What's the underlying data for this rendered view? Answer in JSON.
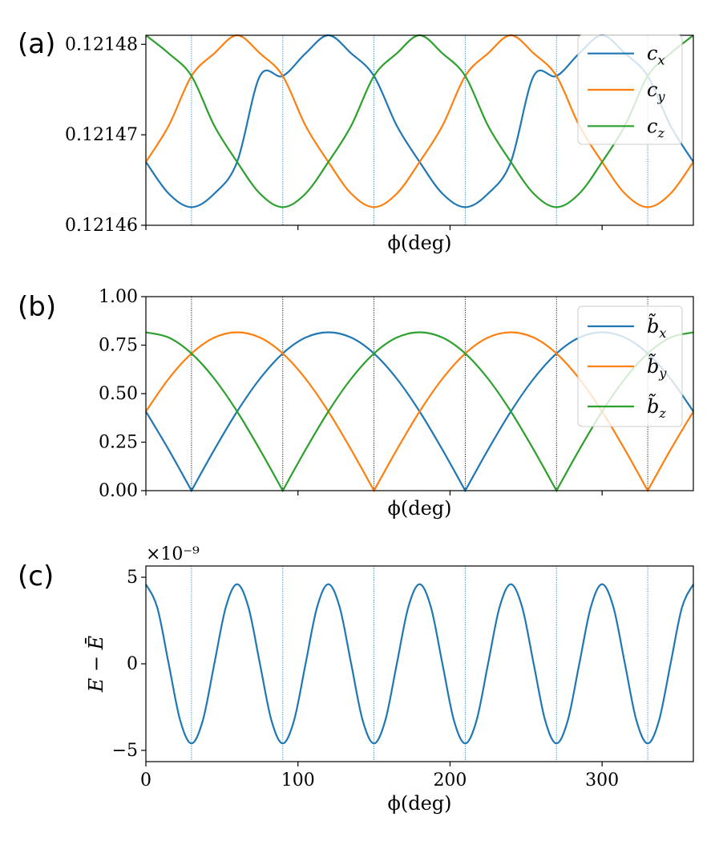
{
  "colors": {
    "blue": "#1f77b4",
    "orange": "#ff7f0e",
    "green": "#2ca02c",
    "black": "#000000"
  },
  "chart_data": [
    {
      "type": "line",
      "panel": "(a)",
      "xlabel": "ϕ(deg)",
      "ylabel": "",
      "xlim": [
        0,
        360
      ],
      "ylim": [
        0.12146,
        0.121481
      ],
      "yticks": [
        0.12146,
        0.12147,
        0.12148
      ],
      "ytick_labels": [
        "0.12146",
        "0.12147",
        "0.12148"
      ],
      "xtick_values": [
        0,
        100,
        200,
        300
      ],
      "show_xtick_labels": false,
      "vlines": [
        30,
        90,
        150,
        210,
        270,
        330
      ],
      "vline_color": "#1f77b4",
      "legend": {
        "placement": "top-right",
        "entries": [
          {
            "name": "c",
            "sub": "x"
          },
          {
            "name": "c",
            "sub": "y"
          },
          {
            "name": "c",
            "sub": "z"
          }
        ]
      },
      "series": [
        {
          "name": "cx",
          "color": "#1f77b4",
          "x": [
            0,
            15,
            30,
            45,
            60,
            75,
            90,
            105,
            120,
            135,
            150,
            165,
            180,
            195,
            210,
            225,
            240,
            255,
            270,
            285,
            300,
            315,
            330,
            345,
            360
          ],
          "y": [
            0.121467,
            0.1214635,
            0.121462,
            0.1214635,
            0.121467,
            0.1214765,
            0.1214765,
            0.121479,
            0.121481,
            0.121479,
            0.1214765,
            0.121471,
            0.121467,
            0.1214635,
            0.121462,
            0.1214635,
            0.121467,
            0.1214765,
            0.1214765,
            0.121479,
            0.121481,
            0.121479,
            0.1214765,
            0.121471,
            0.121467
          ]
        },
        {
          "name": "cy",
          "color": "#ff7f0e",
          "x": [
            0,
            15,
            30,
            45,
            60,
            75,
            90,
            105,
            120,
            135,
            150,
            165,
            180,
            195,
            210,
            225,
            240,
            255,
            270,
            285,
            300,
            315,
            330,
            345,
            360
          ],
          "y": [
            0.121467,
            0.121471,
            0.1214765,
            0.121479,
            0.121481,
            0.121479,
            0.1214765,
            0.121471,
            0.121467,
            0.1214635,
            0.121462,
            0.1214635,
            0.121467,
            0.121471,
            0.1214765,
            0.121479,
            0.121481,
            0.121479,
            0.1214765,
            0.121471,
            0.121467,
            0.1214635,
            0.121462,
            0.1214635,
            0.121467
          ]
        },
        {
          "name": "cz",
          "color": "#2ca02c",
          "x": [
            0,
            15,
            30,
            45,
            60,
            75,
            90,
            105,
            120,
            135,
            150,
            165,
            180,
            195,
            210,
            225,
            240,
            255,
            270,
            285,
            300,
            315,
            330,
            345,
            360
          ],
          "y": [
            0.121481,
            0.121479,
            0.1214765,
            0.121471,
            0.121467,
            0.1214635,
            0.121462,
            0.1214635,
            0.121467,
            0.121471,
            0.1214765,
            0.121479,
            0.121481,
            0.121479,
            0.1214765,
            0.121471,
            0.121467,
            0.1214635,
            0.121462,
            0.1214635,
            0.121467,
            0.121471,
            0.1214765,
            0.121479,
            0.121481
          ]
        }
      ]
    },
    {
      "type": "line",
      "panel": "(b)",
      "xlabel": "ϕ(deg)",
      "ylabel": "",
      "xlim": [
        0,
        360
      ],
      "ylim": [
        0,
        1
      ],
      "yticks": [
        0,
        0.25,
        0.5,
        0.75,
        1
      ],
      "ytick_labels": [
        "0.00",
        "0.25",
        "0.50",
        "0.75",
        "1.00"
      ],
      "xtick_values": [
        0,
        100,
        200,
        300
      ],
      "show_xtick_labels": false,
      "vlines": [
        30,
        90,
        150,
        210,
        270,
        330
      ],
      "vline_color": "#000000",
      "legend": {
        "placement": "top-right",
        "entries": [
          {
            "name": "b̃",
            "sub": "x"
          },
          {
            "name": "b̃",
            "sub": "y"
          },
          {
            "name": "b̃",
            "sub": "z"
          }
        ]
      },
      "series": [
        {
          "name": "bx",
          "color": "#1f77b4",
          "x": [
            0,
            15,
            30,
            45,
            60,
            75,
            90,
            105,
            120,
            135,
            150,
            165,
            180,
            195,
            210,
            225,
            240,
            255,
            270,
            285,
            300,
            315,
            330,
            345,
            360
          ],
          "y": [
            0.408,
            0.211,
            0,
            0.211,
            0.408,
            0.577,
            0.707,
            0.789,
            0.816,
            0.789,
            0.707,
            0.577,
            0.408,
            0.211,
            0,
            0.211,
            0.408,
            0.577,
            0.707,
            0.789,
            0.816,
            0.789,
            0.707,
            0.577,
            0.408
          ]
        },
        {
          "name": "by",
          "color": "#ff7f0e",
          "x": [
            0,
            15,
            30,
            45,
            60,
            75,
            90,
            105,
            120,
            135,
            150,
            165,
            180,
            195,
            210,
            225,
            240,
            255,
            270,
            285,
            300,
            315,
            330,
            345,
            360
          ],
          "y": [
            0.408,
            0.577,
            0.707,
            0.789,
            0.816,
            0.789,
            0.707,
            0.577,
            0.408,
            0.211,
            0,
            0.211,
            0.408,
            0.577,
            0.707,
            0.789,
            0.816,
            0.789,
            0.707,
            0.577,
            0.408,
            0.211,
            0,
            0.211,
            0.408
          ]
        },
        {
          "name": "bz",
          "color": "#2ca02c",
          "x": [
            0,
            15,
            30,
            45,
            60,
            75,
            90,
            105,
            120,
            135,
            150,
            165,
            180,
            195,
            210,
            225,
            240,
            255,
            270,
            285,
            300,
            315,
            330,
            345,
            360
          ],
          "y": [
            0.816,
            0.789,
            0.707,
            0.577,
            0.408,
            0.211,
            0,
            0.211,
            0.408,
            0.577,
            0.707,
            0.789,
            0.816,
            0.789,
            0.707,
            0.577,
            0.408,
            0.211,
            0,
            0.211,
            0.408,
            0.577,
            0.707,
            0.789,
            0.816
          ]
        }
      ]
    },
    {
      "type": "line",
      "panel": "(c)",
      "xlabel": "ϕ(deg)",
      "ylabel": "E − Ē",
      "offset_text": "×10⁻⁹",
      "xlim": [
        0,
        360
      ],
      "ylim": [
        -5.65,
        5.65
      ],
      "yticks": [
        -5,
        0,
        5
      ],
      "ytick_labels": [
        "−5",
        "0",
        "5"
      ],
      "xtick_values": [
        0,
        100,
        200,
        300
      ],
      "xtick_labels": [
        "0",
        "100",
        "200",
        "300"
      ],
      "show_xtick_labels": true,
      "vlines": [
        30,
        90,
        150,
        210,
        270,
        330
      ],
      "vline_color": "#1f77b4",
      "series": [
        {
          "name": "E",
          "color": "#1f77b4",
          "x": [
            0,
            7.5,
            15,
            22.5,
            30,
            37.5,
            45,
            52.5,
            60,
            67.5,
            75,
            82.5,
            90,
            97.5,
            105,
            112.5,
            120,
            127.5,
            135,
            142.5,
            150,
            157.5,
            165,
            172.5,
            180,
            187.5,
            195,
            202.5,
            210,
            217.5,
            225,
            232.5,
            240,
            247.5,
            255,
            262.5,
            270,
            277.5,
            285,
            292.5,
            300,
            307.5,
            315,
            322.5,
            330,
            337.5,
            345,
            352.5,
            360
          ],
          "y": [
            4.6,
            3.25,
            0,
            -3.25,
            -4.6,
            -3.25,
            0,
            3.25,
            4.6,
            3.25,
            0,
            -3.25,
            -4.6,
            -3.25,
            0,
            3.25,
            4.6,
            3.25,
            0,
            -3.25,
            -4.6,
            -3.25,
            0,
            3.25,
            4.6,
            3.25,
            0,
            -3.25,
            -4.6,
            -3.25,
            0,
            3.25,
            4.6,
            3.25,
            0,
            -3.25,
            -4.6,
            -3.25,
            0,
            3.25,
            4.6,
            3.25,
            0,
            -3.25,
            -4.6,
            -3.25,
            0,
            3.25,
            4.6
          ]
        }
      ]
    }
  ]
}
